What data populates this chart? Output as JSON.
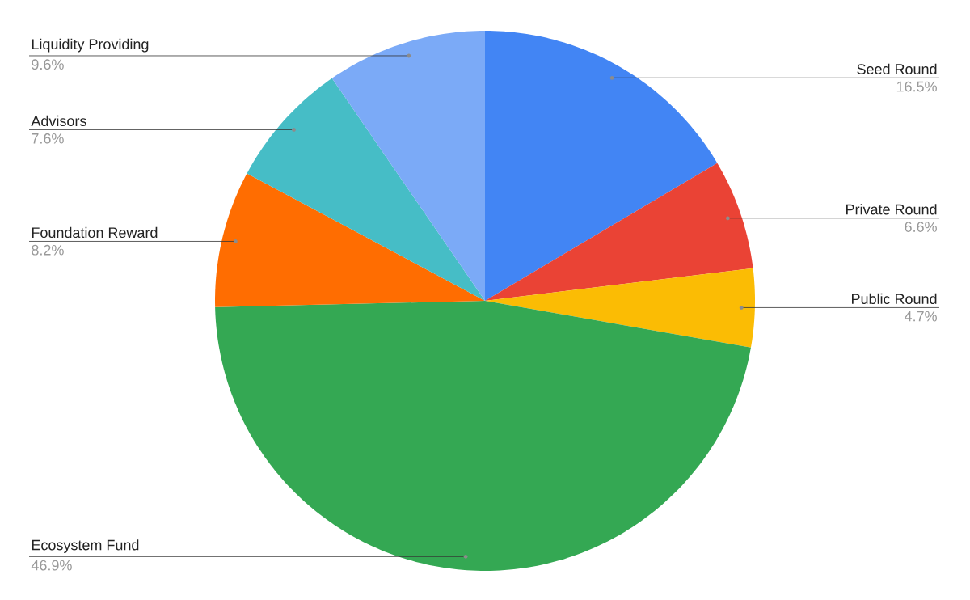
{
  "chart_data": {
    "type": "pie",
    "categories": [
      "Seed Round",
      "Private Round",
      "Public Round",
      "Ecosystem Fund",
      "Foundation Reward",
      "Advisors",
      "Liquidity Providing"
    ],
    "values": [
      16.5,
      6.6,
      4.7,
      46.9,
      8.2,
      7.6,
      9.6
    ],
    "value_labels": [
      "16.5%",
      "6.6%",
      "4.7%",
      "46.9%",
      "8.2%",
      "7.6%",
      "9.6%"
    ],
    "colors": [
      "#4285f4",
      "#ea4335",
      "#fbbc04",
      "#34a853",
      "#ff6d01",
      "#46bdc6",
      "#7baaf7"
    ]
  }
}
